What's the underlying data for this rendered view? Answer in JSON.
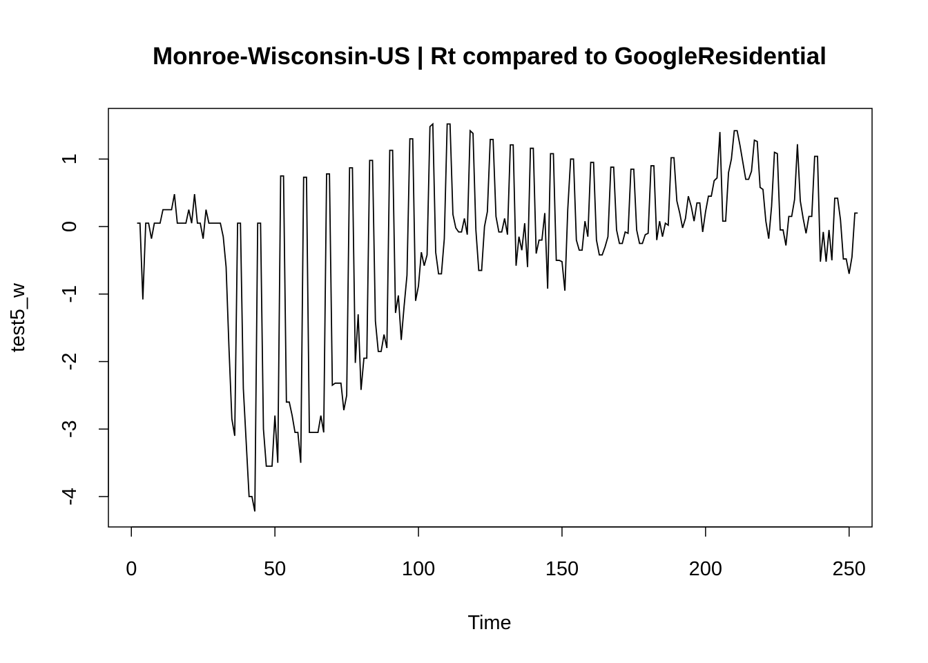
{
  "chart_data": {
    "type": "line",
    "title": "Monroe-Wisconsin-US | Rt compared to GoogleResidential",
    "xlabel": "Time",
    "ylabel": "test5_w",
    "xlim": [
      -8,
      258
    ],
    "ylim": [
      -4.45,
      1.75
    ],
    "x_ticks": [
      0,
      50,
      100,
      150,
      200,
      250
    ],
    "y_ticks": [
      -4,
      -3,
      -2,
      -1,
      0,
      1
    ],
    "x_tick_labels": [
      "0",
      "50",
      "100",
      "150",
      "200",
      "250"
    ],
    "y_tick_labels": [
      "-4",
      "-3",
      "-2",
      "-1",
      "0",
      "1"
    ],
    "grid": false,
    "legend": "none",
    "line_color": "#000000",
    "series": [
      {
        "x_start": 2,
        "values": [
          0.05,
          0.05,
          -1.08,
          0.05,
          0.05,
          -0.18,
          0.05,
          0.05,
          0.05,
          0.25,
          0.25,
          0.25,
          0.25,
          0.48,
          0.05,
          0.05,
          0.05,
          0.05,
          0.25,
          0.05,
          0.48,
          0.05,
          0.05,
          -0.18,
          0.25,
          0.05,
          0.05,
          0.05,
          0.05,
          0.05,
          -0.15,
          -0.6,
          -1.8,
          -2.85,
          -3.1,
          0.05,
          0.05,
          -2.4,
          -3.2,
          -4.0,
          -4.0,
          -4.22,
          0.05,
          0.05,
          -3.0,
          -3.55,
          -3.55,
          -3.55,
          -2.8,
          -3.5,
          0.75,
          0.75,
          -2.6,
          -2.6,
          -2.8,
          -3.05,
          -3.05,
          -3.5,
          0.73,
          0.73,
          -3.05,
          -3.05,
          -3.05,
          -3.05,
          -2.8,
          -3.05,
          0.78,
          0.78,
          -2.35,
          -2.32,
          -2.32,
          -2.32,
          -2.72,
          -2.5,
          0.87,
          0.87,
          -2.02,
          -1.3,
          -2.42,
          -1.95,
          -1.95,
          0.98,
          0.98,
          -1.4,
          -1.85,
          -1.85,
          -1.6,
          -1.8,
          1.13,
          1.13,
          -1.28,
          -1.02,
          -1.68,
          -1.18,
          -0.72,
          1.3,
          1.3,
          -1.1,
          -0.88,
          -0.38,
          -0.58,
          -0.42,
          1.48,
          1.52,
          -0.38,
          -0.7,
          -0.7,
          -0.18,
          1.52,
          1.52,
          0.18,
          -0.02,
          -0.08,
          -0.08,
          0.12,
          -0.12,
          1.42,
          1.38,
          -0.05,
          -0.65,
          -0.65,
          0.0,
          0.22,
          1.29,
          1.29,
          0.15,
          -0.08,
          -0.08,
          0.12,
          -0.12,
          1.21,
          1.21,
          -0.58,
          -0.15,
          -0.35,
          0.05,
          -0.6,
          1.16,
          1.16,
          -0.4,
          -0.2,
          -0.2,
          0.2,
          -0.92,
          1.08,
          1.08,
          -0.5,
          -0.5,
          -0.52,
          -0.95,
          0.25,
          1.0,
          1.0,
          -0.2,
          -0.35,
          -0.35,
          0.08,
          -0.15,
          0.95,
          0.95,
          -0.2,
          -0.42,
          -0.42,
          -0.3,
          -0.15,
          0.88,
          0.88,
          -0.05,
          -0.25,
          -0.25,
          -0.08,
          -0.1,
          0.85,
          0.85,
          -0.05,
          -0.25,
          -0.25,
          -0.12,
          -0.1,
          0.9,
          0.9,
          -0.2,
          0.08,
          -0.15,
          0.05,
          0.02,
          1.02,
          1.02,
          0.38,
          0.2,
          -0.02,
          0.12,
          0.45,
          0.3,
          0.08,
          0.35,
          0.35,
          -0.08,
          0.22,
          0.45,
          0.45,
          0.68,
          0.72,
          1.4,
          0.08,
          0.08,
          0.8,
          1.0,
          1.42,
          1.42,
          1.2,
          0.95,
          0.7,
          0.7,
          0.82,
          1.28,
          1.26,
          0.58,
          0.55,
          0.08,
          -0.18,
          0.3,
          1.1,
          1.08,
          -0.05,
          -0.05,
          -0.28,
          0.15,
          0.15,
          0.4,
          1.22,
          0.38,
          0.12,
          -0.1,
          0.15,
          0.15,
          1.04,
          1.04,
          -0.52,
          -0.08,
          -0.52,
          -0.05,
          -0.5,
          0.42,
          0.42,
          0.1,
          -0.48,
          -0.48,
          -0.7,
          -0.45,
          0.2,
          0.2
        ]
      }
    ]
  }
}
